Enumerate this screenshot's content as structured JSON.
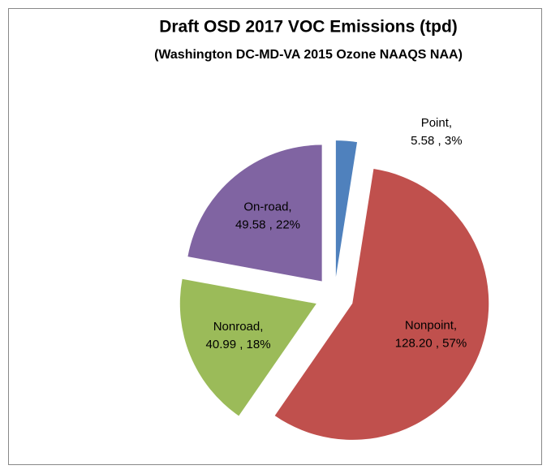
{
  "chart_data": {
    "type": "pie",
    "title": "Draft OSD 2017 VOC Emissions (tpd)",
    "subtitle": "(Washington DC-MD-VA 2015 Ozone NAAQS NAA)",
    "categories": [
      "Point,",
      "Nonpoint,",
      "Nonroad,",
      "On-road,"
    ],
    "values": [
      5.58,
      128.2,
      40.99,
      49.58
    ],
    "value_labels": [
      "5.58 , 3%",
      "128.20 , 57%",
      "40.99 , 18%",
      "49.58 , 22%"
    ],
    "colors": [
      "#4f81bd",
      "#c0504d",
      "#9bbb59",
      "#8064a2"
    ]
  }
}
